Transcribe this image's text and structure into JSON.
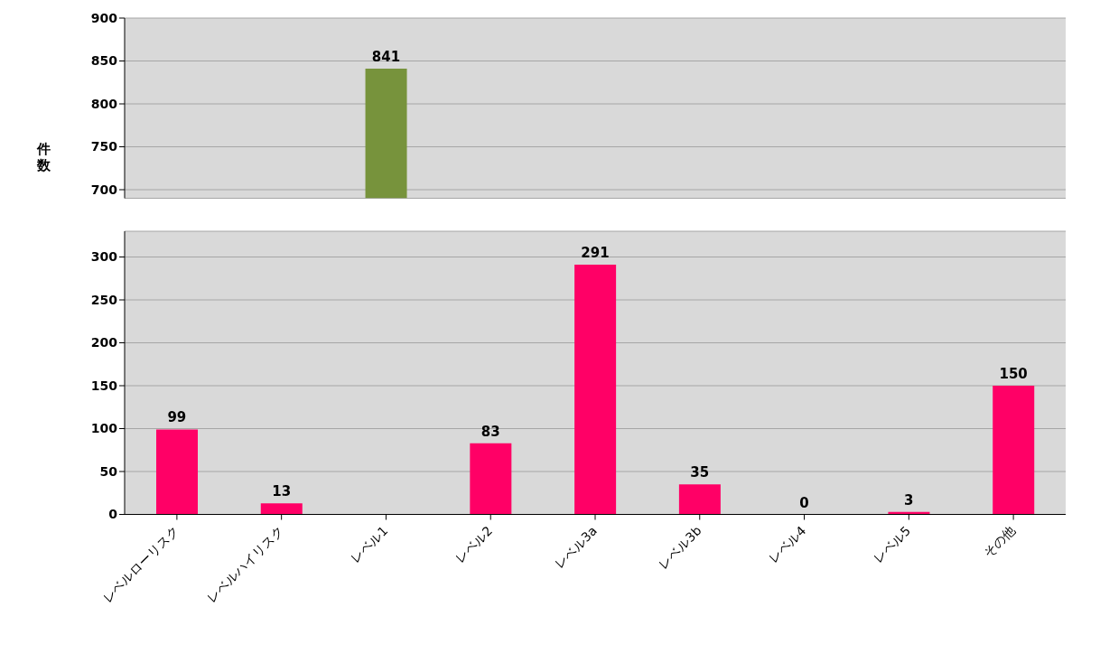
{
  "chart_data": [
    {
      "type": "bar",
      "ylabel": "件数",
      "categories": [
        null,
        null,
        null,
        null,
        null,
        null,
        null,
        null,
        null
      ],
      "values": [
        null,
        null,
        841,
        null,
        null,
        null,
        null,
        null,
        null
      ],
      "colors": [
        "#ff0066",
        "#ff0066",
        "#77933c",
        "#ff0066",
        "#ff0066",
        "#ff0066",
        "#ff0066",
        "#ff0066",
        "#ff0066"
      ],
      "ylim": [
        690,
        900
      ],
      "yticks": [
        700,
        750,
        800,
        850,
        900
      ],
      "grid": "y",
      "data_labels": true,
      "tick_labels": "y"
    },
    {
      "type": "bar",
      "categories": [
        "レベルローリスク",
        "レベルハイリスク",
        "レベル1",
        "レベル2",
        "レベル3a",
        "レベル3b",
        "レベル4",
        "レベル5",
        "その他"
      ],
      "values": [
        99,
        13,
        null,
        83,
        291,
        35,
        0,
        3,
        150
      ],
      "colors": [
        "#ff0066",
        "#ff0066",
        "#77933c",
        "#ff0066",
        "#ff0066",
        "#ff0066",
        "#ff0066",
        "#ff0066",
        "#ff0066"
      ],
      "ylim": [
        0,
        330
      ],
      "yticks": [
        0,
        50,
        100,
        150,
        200,
        250,
        300
      ],
      "grid": "y",
      "data_labels": true
    }
  ]
}
